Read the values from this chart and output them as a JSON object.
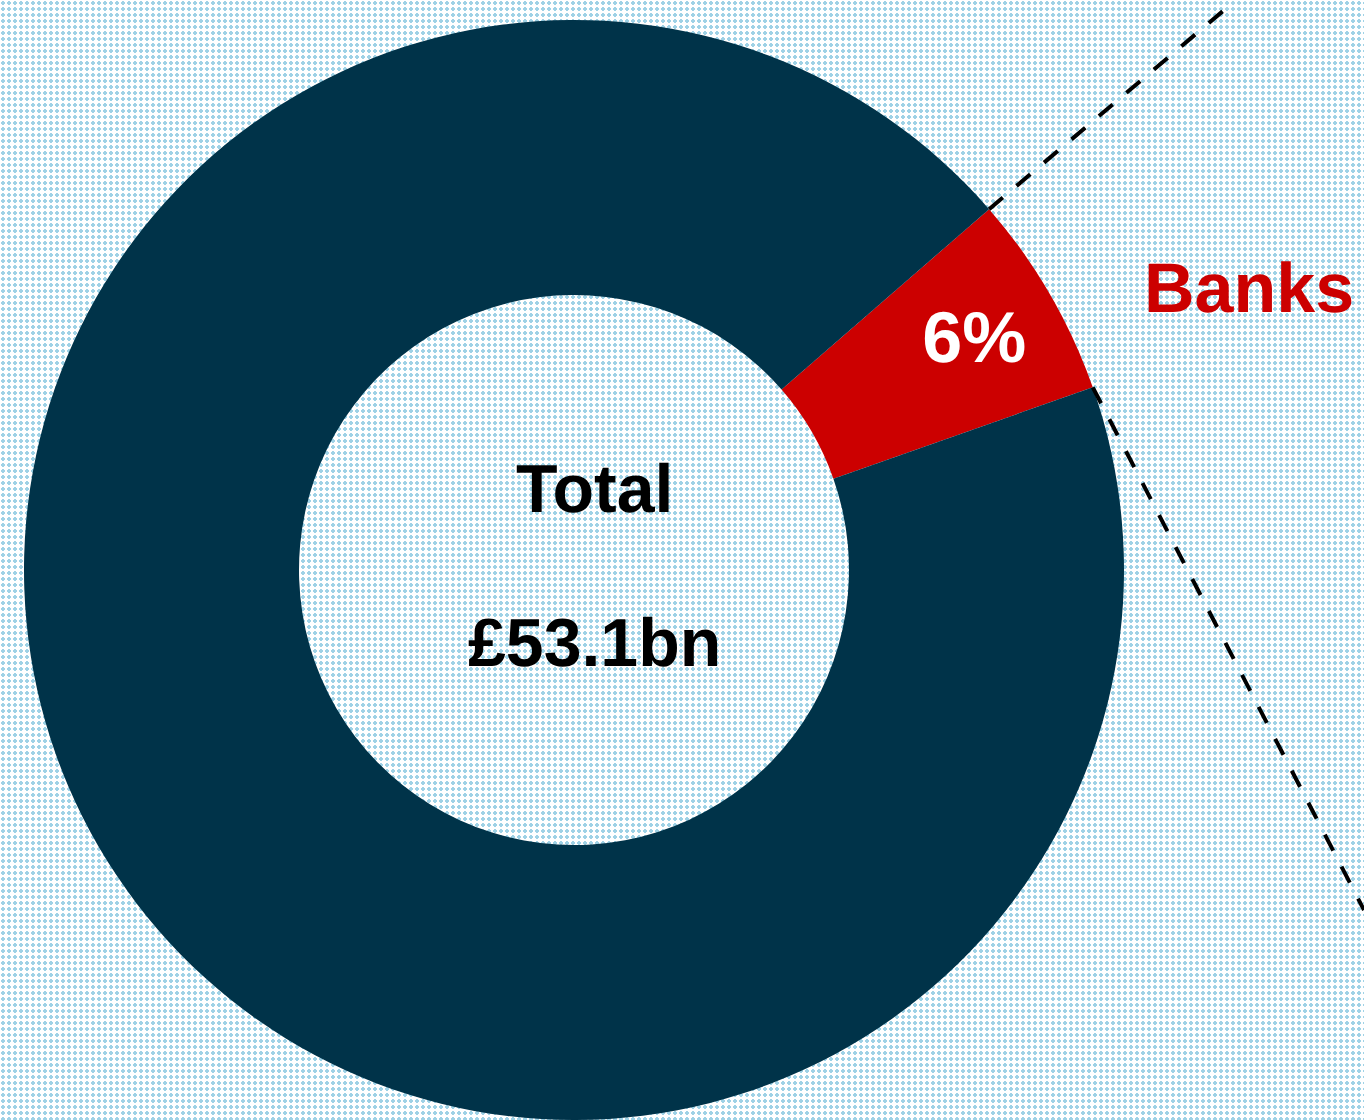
{
  "chart_data": {
    "type": "donut",
    "categories": [
      "Banks",
      null
    ],
    "values": [
      6,
      94
    ],
    "colors": [
      "#cc0000",
      "#003349"
    ],
    "value_labels": [
      "6%",
      null
    ],
    "annotations": [
      "Total",
      "£53.1bn"
    ]
  }
}
